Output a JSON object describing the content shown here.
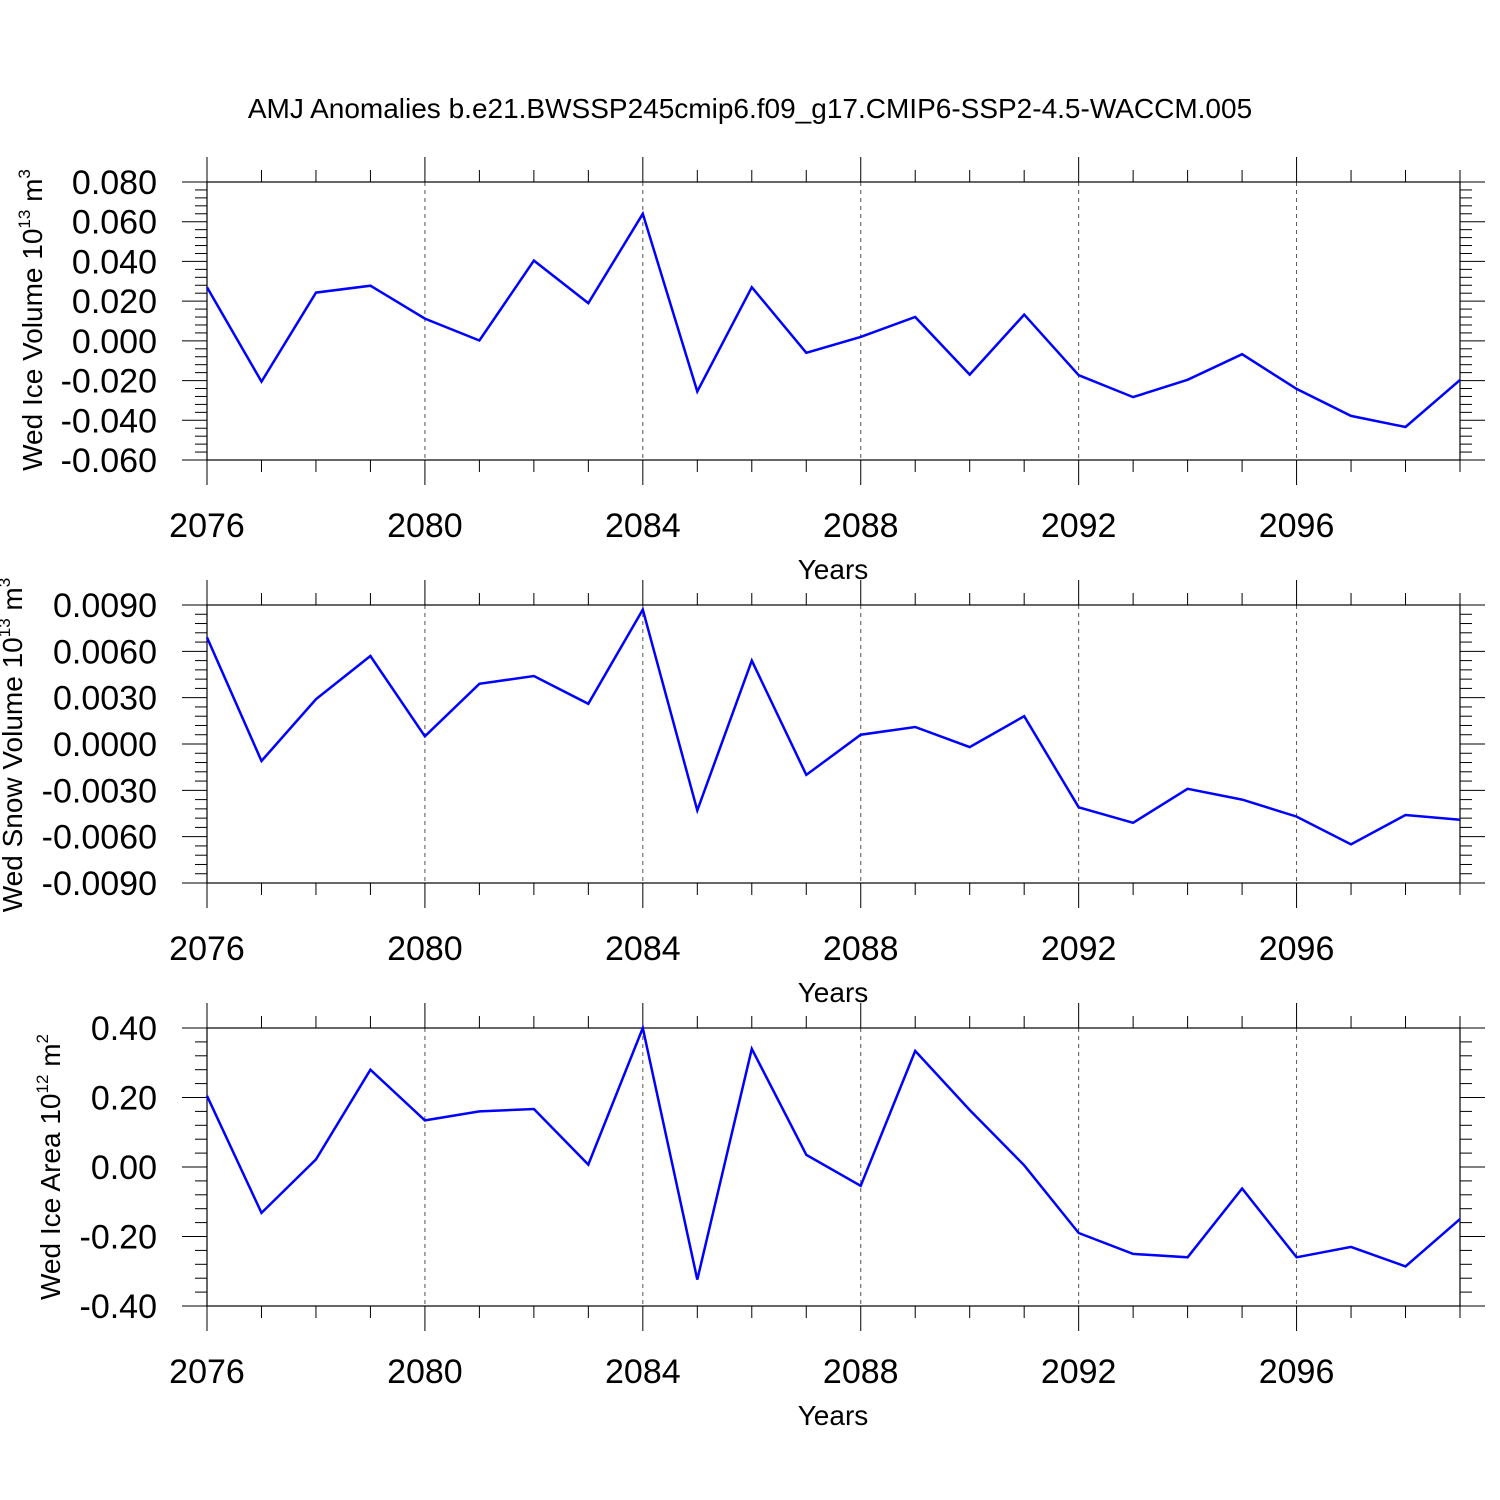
{
  "title": "AMJ Anomalies b.e21.BWSSP245cmip6.f09_g17.CMIP6-SSP2-4.5-WACCM.005",
  "line_color": "#0000ff",
  "chart_data": [
    {
      "type": "line",
      "xlabel": "Years",
      "ylabel": {
        "text": "Wed Ice Volume 10",
        "sup": "13",
        "unit": " m",
        "unit_sup": "3"
      },
      "xlim": [
        2076,
        2099
      ],
      "ylim": [
        -0.06,
        0.08
      ],
      "xticks": [
        2076,
        2080,
        2084,
        2088,
        2092,
        2096
      ],
      "xtick_labels": [
        "2076",
        "2080",
        "2084",
        "2088",
        "2092",
        "2096"
      ],
      "yticks": [
        0.08,
        0.06,
        0.04,
        0.02,
        0.0,
        -0.02,
        -0.04,
        -0.06
      ],
      "ytick_labels": [
        "0.080",
        "0.060",
        "0.040",
        "0.020",
        "0.000",
        "-0.020",
        "-0.040",
        "-0.060"
      ],
      "grid": "vertical dashed at major x ticks",
      "x": [
        2076,
        2077,
        2078,
        2079,
        2080,
        2081,
        2082,
        2083,
        2084,
        2085,
        2086,
        2087,
        2088,
        2089,
        2090,
        2091,
        2092,
        2093,
        2094,
        2095,
        2096,
        2097,
        2098,
        2099
      ],
      "values": [
        0.027,
        -0.0205,
        0.0243,
        0.0278,
        0.0112,
        0.0002,
        0.0404,
        0.019,
        0.064,
        -0.0255,
        0.027,
        -0.006,
        0.002,
        0.012,
        -0.017,
        0.0132,
        -0.0173,
        -0.0283,
        -0.0196,
        -0.0067,
        -0.0242,
        -0.0378,
        -0.0434,
        -0.0197
      ]
    },
    {
      "type": "line",
      "xlabel": "Years",
      "ylabel": {
        "text": "Wed Snow Volume 10",
        "sup": "13",
        "unit": " m",
        "unit_sup": "3"
      },
      "xlim": [
        2076,
        2099
      ],
      "ylim": [
        -0.009,
        0.009
      ],
      "xticks": [
        2076,
        2080,
        2084,
        2088,
        2092,
        2096
      ],
      "xtick_labels": [
        "2076",
        "2080",
        "2084",
        "2088",
        "2092",
        "2096"
      ],
      "yticks": [
        0.009,
        0.006,
        0.003,
        0.0,
        -0.003,
        -0.006,
        -0.009
      ],
      "ytick_labels": [
        "0.0090",
        "0.0060",
        "0.0030",
        "0.0000",
        "-0.0030",
        "-0.0060",
        "-0.0090"
      ],
      "grid": "vertical dashed at major x ticks",
      "x": [
        2076,
        2077,
        2078,
        2079,
        2080,
        2081,
        2082,
        2083,
        2084,
        2085,
        2086,
        2087,
        2088,
        2089,
        2090,
        2091,
        2092,
        2093,
        2094,
        2095,
        2096,
        2097,
        2098,
        2099
      ],
      "values": [
        0.0069,
        -0.0011,
        0.0029,
        0.0057,
        0.0005,
        0.0039,
        0.0044,
        0.0026,
        0.0087,
        -0.0043,
        0.0054,
        -0.002,
        0.0006,
        0.0011,
        -0.0002,
        0.0018,
        -0.0041,
        -0.0051,
        -0.0029,
        -0.0036,
        -0.0047,
        -0.0065,
        -0.0046,
        -0.0049
      ]
    },
    {
      "type": "line",
      "xlabel": "Years",
      "ylabel": {
        "text": "Wed Ice Area 10",
        "sup": "12",
        "unit": " m",
        "unit_sup": "2"
      },
      "xlim": [
        2076,
        2099
      ],
      "ylim": [
        -0.4,
        0.4
      ],
      "xticks": [
        2076,
        2080,
        2084,
        2088,
        2092,
        2096
      ],
      "xtick_labels": [
        "2076",
        "2080",
        "2084",
        "2088",
        "2092",
        "2096"
      ],
      "yticks": [
        0.4,
        0.2,
        0.0,
        -0.2,
        -0.4
      ],
      "ytick_labels": [
        "0.40",
        "0.20",
        "0.00",
        "-0.20",
        "-0.40"
      ],
      "grid": "vertical dashed at major x ticks",
      "x": [
        2076,
        2077,
        2078,
        2079,
        2080,
        2081,
        2082,
        2083,
        2084,
        2085,
        2086,
        2087,
        2088,
        2089,
        2090,
        2091,
        2092,
        2093,
        2094,
        2095,
        2096,
        2097,
        2098,
        2099
      ],
      "values": [
        0.205,
        -0.132,
        0.022,
        0.28,
        0.134,
        0.16,
        0.167,
        0.007,
        0.4,
        -0.324,
        0.34,
        0.035,
        -0.054,
        0.334,
        0.164,
        0.005,
        -0.19,
        -0.25,
        -0.26,
        -0.062,
        -0.26,
        -0.23,
        -0.286,
        -0.15
      ]
    }
  ]
}
